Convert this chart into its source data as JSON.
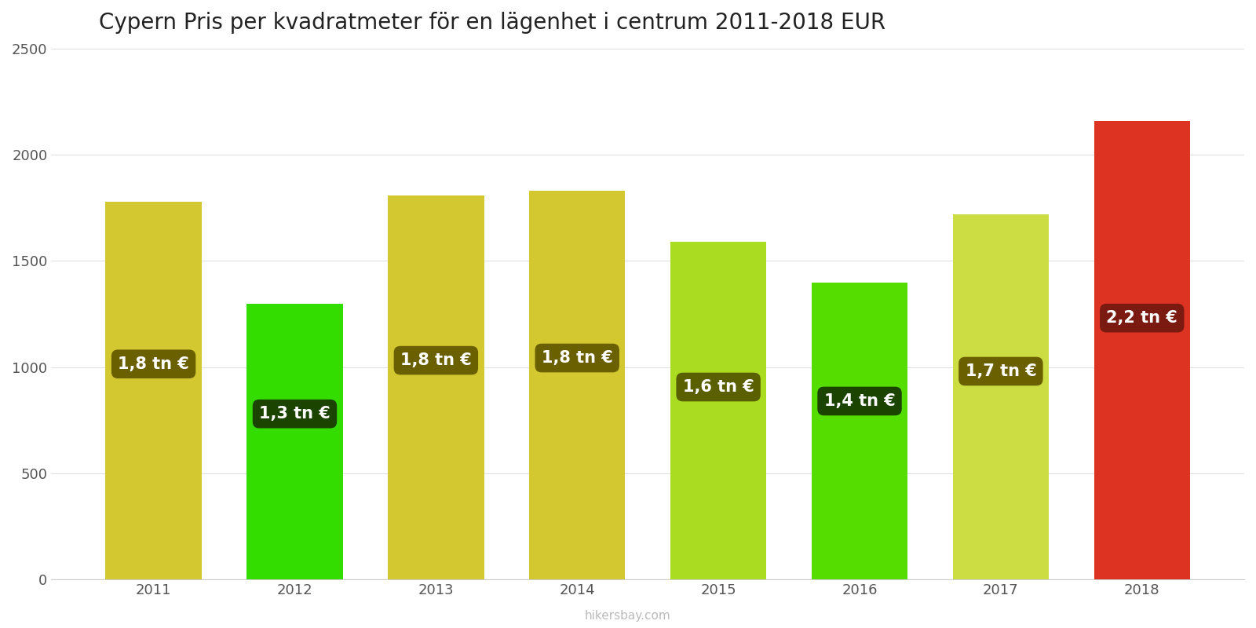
{
  "title": "Cypern Pris per kvadratmeter för en lägenhet i centrum 2011-2018 EUR",
  "years": [
    2011,
    2012,
    2013,
    2014,
    2015,
    2016,
    2017,
    2018
  ],
  "values": [
    1780,
    1300,
    1810,
    1830,
    1590,
    1400,
    1720,
    2160
  ],
  "labels": [
    "1,8 tn €",
    "1,3 tn €",
    "1,8 tn €",
    "1,8 tn €",
    "1,6 tn €",
    "1,4 tn €",
    "1,7 tn €",
    "2,2 tn €"
  ],
  "bar_colors": [
    "#d4c830",
    "#33dd00",
    "#d4c830",
    "#d4c830",
    "#aadd22",
    "#55dd00",
    "#ccdd44",
    "#dd3322"
  ],
  "label_bg_colors": [
    "#6b6000",
    "#1a4400",
    "#6b6000",
    "#6b6000",
    "#5a6000",
    "#1a4400",
    "#6b6000",
    "#7a1a10"
  ],
  "label_y_fractions": [
    0.57,
    0.6,
    0.57,
    0.57,
    0.57,
    0.6,
    0.57,
    0.57
  ],
  "ylim": [
    0,
    2500
  ],
  "yticks": [
    0,
    500,
    1000,
    1500,
    2000,
    2500
  ],
  "watermark": "hikersbay.com",
  "title_fontsize": 20,
  "background_color": "#ffffff"
}
